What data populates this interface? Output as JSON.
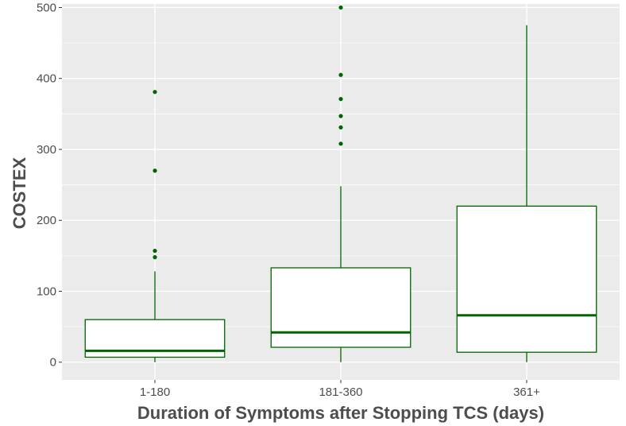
{
  "chart_data": {
    "type": "box",
    "title": "",
    "xlabel": "Duration of Symptoms after Stopping TCS (days)",
    "ylabel": "COSTEX",
    "ylim": [
      -25,
      505
    ],
    "yticks": [
      0,
      100,
      200,
      300,
      400,
      500
    ],
    "grid": true,
    "colors": {
      "panel": "#ebebeb",
      "grid": "#ffffff",
      "box_stroke": "#006400",
      "box_fill": "#ffffff",
      "outlier": "#006400",
      "text": "#4d4d4d"
    },
    "categories": [
      "1-180",
      "181-360",
      "361+"
    ],
    "boxes": [
      {
        "category": "1-180",
        "whisker_low": 0,
        "q1": 7,
        "median": 16,
        "q3": 60,
        "whisker_high": 128,
        "outliers": [
          148,
          157,
          270,
          381
        ]
      },
      {
        "category": "181-360",
        "whisker_low": 0,
        "q1": 21,
        "median": 42,
        "q3": 133,
        "whisker_high": 248,
        "outliers": [
          308,
          331,
          347,
          371,
          405,
          500
        ]
      },
      {
        "category": "361+",
        "whisker_low": 0,
        "q1": 14,
        "median": 66,
        "q3": 220,
        "whisker_high": 475,
        "outliers": []
      }
    ]
  }
}
